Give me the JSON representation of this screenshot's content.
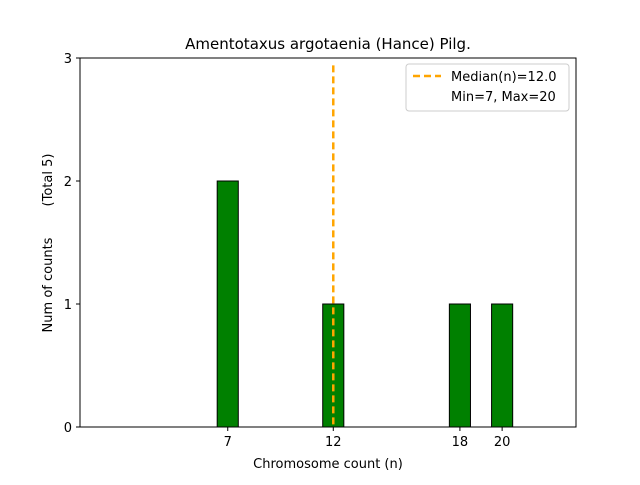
{
  "chart_data": {
    "type": "bar",
    "title": "Amentotaxus argotaenia (Hance) Pilg.",
    "xlabel": "Chromosome count (n)",
    "ylabel": "Num of counts",
    "ylabel_note": "(Total 5)",
    "x": [
      7,
      12,
      18,
      20
    ],
    "values": [
      2,
      1,
      1,
      1
    ],
    "xlim": [
      0,
      23.5
    ],
    "ylim": [
      0,
      3
    ],
    "x_ticks": [
      7,
      12,
      18,
      20
    ],
    "y_ticks": [
      0,
      1,
      2,
      3
    ],
    "bar_color": "#008000",
    "bar_edge_color": "#000000",
    "median": 12.0,
    "median_color": "#FFA500",
    "legend": {
      "position": "top-right",
      "entries": [
        "Median(n)=12.0",
        "Min=7, Max=20"
      ]
    },
    "grid": false
  }
}
